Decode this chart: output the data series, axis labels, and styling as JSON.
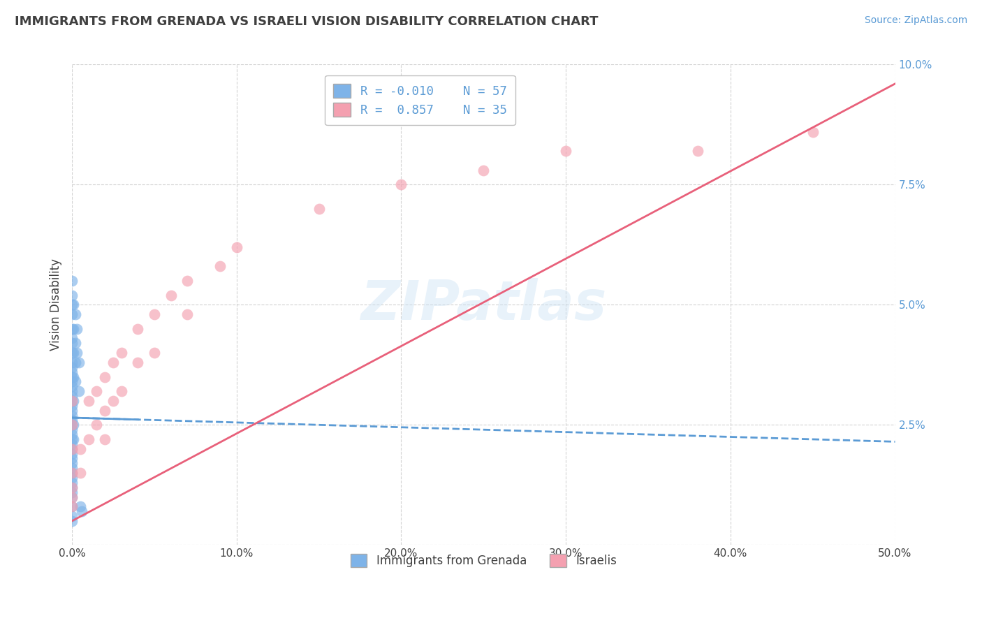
{
  "title": "IMMIGRANTS FROM GRENADA VS ISRAELI VISION DISABILITY CORRELATION CHART",
  "source_text": "Source: ZipAtlas.com",
  "ylabel": "Vision Disability",
  "xlim": [
    0.0,
    0.5
  ],
  "ylim": [
    0.0,
    0.1
  ],
  "xticks": [
    0.0,
    0.1,
    0.2,
    0.3,
    0.4,
    0.5
  ],
  "yticks": [
    0.0,
    0.025,
    0.05,
    0.075,
    0.1
  ],
  "xticklabels": [
    "0.0%",
    "10.0%",
    "20.0%",
    "30.0%",
    "40.0%",
    "50.0%"
  ],
  "yticklabels": [
    "",
    "2.5%",
    "5.0%",
    "7.5%",
    "10.0%"
  ],
  "series1_label": "Immigrants from Grenada",
  "series1_color": "#7EB3E8",
  "series1_N": 57,
  "series2_label": "Israelis",
  "series2_color": "#F4A0B0",
  "series2_N": 35,
  "watermark": "ZIPatlas",
  "background_color": "#ffffff",
  "grid_color": "#c8c8c8",
  "title_color": "#404040",
  "source_color": "#5b9bd5",
  "axis_color": "#404040",
  "tick_color_y": "#5b9bd5",
  "tick_color_x": "#404040",
  "legend_R1": "R = -0.010",
  "legend_N1": "N = 57",
  "legend_R2": "R =  0.857",
  "legend_N2": "N = 35",
  "trend1_x": [
    0.0,
    0.5
  ],
  "trend1_y": [
    0.0265,
    0.0215
  ],
  "trend2_x": [
    0.0,
    0.5
  ],
  "trend2_y": [
    0.005,
    0.096
  ],
  "series1_scatter": [
    [
      0.0,
      0.055
    ],
    [
      0.0,
      0.052
    ],
    [
      0.0,
      0.05
    ],
    [
      0.0,
      0.048
    ],
    [
      0.0,
      0.045
    ],
    [
      0.0,
      0.043
    ],
    [
      0.0,
      0.042
    ],
    [
      0.0,
      0.04
    ],
    [
      0.0,
      0.038
    ],
    [
      0.0,
      0.037
    ],
    [
      0.0,
      0.036
    ],
    [
      0.0,
      0.035
    ],
    [
      0.0,
      0.034
    ],
    [
      0.0,
      0.033
    ],
    [
      0.0,
      0.032
    ],
    [
      0.0,
      0.031
    ],
    [
      0.0,
      0.03
    ],
    [
      0.0,
      0.029
    ],
    [
      0.0,
      0.028
    ],
    [
      0.0,
      0.027
    ],
    [
      0.0,
      0.026
    ],
    [
      0.0,
      0.025
    ],
    [
      0.0,
      0.024
    ],
    [
      0.0,
      0.023
    ],
    [
      0.0,
      0.022
    ],
    [
      0.0,
      0.021
    ],
    [
      0.0,
      0.02
    ],
    [
      0.0,
      0.019
    ],
    [
      0.0,
      0.018
    ],
    [
      0.0,
      0.017
    ],
    [
      0.0,
      0.016
    ],
    [
      0.0,
      0.015
    ],
    [
      0.0,
      0.014
    ],
    [
      0.0,
      0.013
    ],
    [
      0.0,
      0.012
    ],
    [
      0.0,
      0.011
    ],
    [
      0.0,
      0.01
    ],
    [
      0.0,
      0.008
    ],
    [
      0.0,
      0.006
    ],
    [
      0.0,
      0.005
    ],
    [
      0.001,
      0.05
    ],
    [
      0.001,
      0.045
    ],
    [
      0.001,
      0.04
    ],
    [
      0.001,
      0.035
    ],
    [
      0.001,
      0.03
    ],
    [
      0.001,
      0.025
    ],
    [
      0.001,
      0.022
    ],
    [
      0.002,
      0.048
    ],
    [
      0.002,
      0.042
    ],
    [
      0.002,
      0.038
    ],
    [
      0.002,
      0.034
    ],
    [
      0.003,
      0.045
    ],
    [
      0.003,
      0.04
    ],
    [
      0.004,
      0.038
    ],
    [
      0.004,
      0.032
    ],
    [
      0.005,
      0.008
    ],
    [
      0.006,
      0.007
    ]
  ],
  "series2_scatter": [
    [
      0.0,
      0.03
    ],
    [
      0.0,
      0.025
    ],
    [
      0.0,
      0.02
    ],
    [
      0.0,
      0.015
    ],
    [
      0.0,
      0.012
    ],
    [
      0.0,
      0.01
    ],
    [
      0.0,
      0.008
    ],
    [
      0.005,
      0.02
    ],
    [
      0.005,
      0.015
    ],
    [
      0.01,
      0.03
    ],
    [
      0.01,
      0.022
    ],
    [
      0.015,
      0.032
    ],
    [
      0.015,
      0.025
    ],
    [
      0.02,
      0.035
    ],
    [
      0.02,
      0.028
    ],
    [
      0.02,
      0.022
    ],
    [
      0.025,
      0.038
    ],
    [
      0.025,
      0.03
    ],
    [
      0.03,
      0.04
    ],
    [
      0.03,
      0.032
    ],
    [
      0.04,
      0.045
    ],
    [
      0.04,
      0.038
    ],
    [
      0.05,
      0.048
    ],
    [
      0.05,
      0.04
    ],
    [
      0.06,
      0.052
    ],
    [
      0.07,
      0.055
    ],
    [
      0.07,
      0.048
    ],
    [
      0.09,
      0.058
    ],
    [
      0.1,
      0.062
    ],
    [
      0.15,
      0.07
    ],
    [
      0.2,
      0.075
    ],
    [
      0.25,
      0.078
    ],
    [
      0.3,
      0.082
    ],
    [
      0.38,
      0.082
    ],
    [
      0.45,
      0.086
    ]
  ]
}
